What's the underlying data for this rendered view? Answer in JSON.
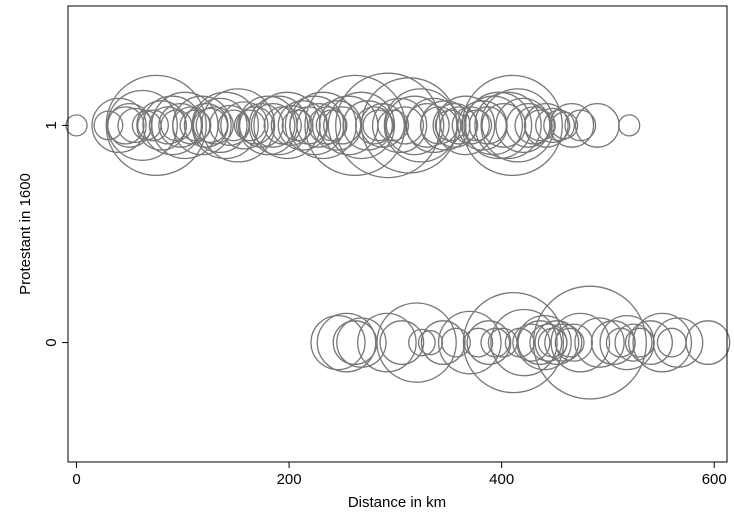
{
  "chart_data": {
    "type": "scatter",
    "title": "",
    "xlabel": "Distance in km",
    "ylabel": "Protestant in 1600",
    "xlim": [
      -8,
      612
    ],
    "ylim": [
      -0.55,
      1.55
    ],
    "x_ticks": [
      0,
      200,
      400,
      600
    ],
    "x_tick_labels": [
      "0",
      "200",
      "400",
      "600"
    ],
    "y_ticks": [
      0,
      1
    ],
    "y_tick_labels": [
      "0",
      "1"
    ],
    "grid": false,
    "legend": "none",
    "marker": "hollow circle, size proportional to weight",
    "colors": {
      "marker": "#777777",
      "frame": "#000000",
      "background": "#ffffff"
    },
    "series": [
      {
        "y": 1,
        "points": [
          {
            "x": 0,
            "w": 0.02
          },
          {
            "x": 30,
            "w": 0.05
          },
          {
            "x": 40,
            "w": 0.25
          },
          {
            "x": 46,
            "w": 0.1
          },
          {
            "x": 50,
            "w": 0.15
          },
          {
            "x": 55,
            "w": 0.08
          },
          {
            "x": 62,
            "w": 0.45
          },
          {
            "x": 66,
            "w": 0.05
          },
          {
            "x": 72,
            "w": 0.06
          },
          {
            "x": 75,
            "w": 1.0
          },
          {
            "x": 80,
            "w": 0.2
          },
          {
            "x": 86,
            "w": 0.1
          },
          {
            "x": 90,
            "w": 0.3
          },
          {
            "x": 94,
            "w": 0.06
          },
          {
            "x": 98,
            "w": 0.15
          },
          {
            "x": 102,
            "w": 0.4
          },
          {
            "x": 108,
            "w": 0.1
          },
          {
            "x": 112,
            "w": 0.06
          },
          {
            "x": 118,
            "w": 0.3
          },
          {
            "x": 122,
            "w": 0.15
          },
          {
            "x": 126,
            "w": 0.08
          },
          {
            "x": 130,
            "w": 0.1
          },
          {
            "x": 135,
            "w": 0.25
          },
          {
            "x": 140,
            "w": 0.4
          },
          {
            "x": 144,
            "w": 0.12
          },
          {
            "x": 148,
            "w": 0.06
          },
          {
            "x": 152,
            "w": 0.5
          },
          {
            "x": 158,
            "w": 0.18
          },
          {
            "x": 163,
            "w": 0.06
          },
          {
            "x": 168,
            "w": 0.1
          },
          {
            "x": 174,
            "w": 0.15
          },
          {
            "x": 180,
            "w": 0.3
          },
          {
            "x": 185,
            "w": 0.15
          },
          {
            "x": 190,
            "w": 0.3
          },
          {
            "x": 194,
            "w": 0.1
          },
          {
            "x": 198,
            "w": 0.4
          },
          {
            "x": 202,
            "w": 0.12
          },
          {
            "x": 208,
            "w": 0.06
          },
          {
            "x": 213,
            "w": 0.2
          },
          {
            "x": 218,
            "w": 0.1
          },
          {
            "x": 224,
            "w": 0.3
          },
          {
            "x": 228,
            "w": 0.15
          },
          {
            "x": 232,
            "w": 0.4
          },
          {
            "x": 236,
            "w": 0.1
          },
          {
            "x": 240,
            "w": 0.06
          },
          {
            "x": 245,
            "w": 0.2
          },
          {
            "x": 250,
            "w": 0.1
          },
          {
            "x": 256,
            "w": 0.3
          },
          {
            "x": 262,
            "w": 1.0
          },
          {
            "x": 268,
            "w": 0.4
          },
          {
            "x": 274,
            "w": 0.2
          },
          {
            "x": 280,
            "w": 0.1
          },
          {
            "x": 284,
            "w": 0.06
          },
          {
            "x": 288,
            "w": 0.15
          },
          {
            "x": 293,
            "w": 1.1
          },
          {
            "x": 298,
            "w": 0.06
          },
          {
            "x": 304,
            "w": 0.25
          },
          {
            "x": 309,
            "w": 0.1
          },
          {
            "x": 313,
            "w": 0.9
          },
          {
            "x": 318,
            "w": 0.3
          },
          {
            "x": 324,
            "w": 0.5
          },
          {
            "x": 330,
            "w": 0.15
          },
          {
            "x": 336,
            "w": 0.25
          },
          {
            "x": 341,
            "w": 0.1
          },
          {
            "x": 347,
            "w": 0.2
          },
          {
            "x": 352,
            "w": 0.06
          },
          {
            "x": 356,
            "w": 0.15
          },
          {
            "x": 360,
            "w": 0.1
          },
          {
            "x": 366,
            "w": 0.3
          },
          {
            "x": 371,
            "w": 0.1
          },
          {
            "x": 376,
            "w": 0.06
          },
          {
            "x": 382,
            "w": 0.2
          },
          {
            "x": 387,
            "w": 0.1
          },
          {
            "x": 392,
            "w": 0.3
          },
          {
            "x": 397,
            "w": 0.4
          },
          {
            "x": 402,
            "w": 0.15
          },
          {
            "x": 406,
            "w": 0.4
          },
          {
            "x": 410,
            "w": 1.0
          },
          {
            "x": 415,
            "w": 0.5
          },
          {
            "x": 420,
            "w": 0.25
          },
          {
            "x": 425,
            "w": 0.15
          },
          {
            "x": 430,
            "w": 0.1
          },
          {
            "x": 436,
            "w": 0.06
          },
          {
            "x": 442,
            "w": 0.15
          },
          {
            "x": 448,
            "w": 0.08
          },
          {
            "x": 454,
            "w": 0.06
          },
          {
            "x": 459,
            "w": 0.04
          },
          {
            "x": 466,
            "w": 0.15
          },
          {
            "x": 474,
            "w": 0.06
          },
          {
            "x": 490,
            "w": 0.15
          },
          {
            "x": 520,
            "w": 0.02
          }
        ]
      },
      {
        "y": 0,
        "points": [
          {
            "x": 246,
            "w": 0.25
          },
          {
            "x": 254,
            "w": 0.3
          },
          {
            "x": 262,
            "w": 0.15
          },
          {
            "x": 268,
            "w": 0.2
          },
          {
            "x": 292,
            "w": 0.3
          },
          {
            "x": 306,
            "w": 0.15
          },
          {
            "x": 320,
            "w": 0.6
          },
          {
            "x": 325,
            "w": 0.04
          },
          {
            "x": 333,
            "w": 0.03
          },
          {
            "x": 345,
            "w": 0.15
          },
          {
            "x": 357,
            "w": 0.05
          },
          {
            "x": 370,
            "w": 0.35
          },
          {
            "x": 378,
            "w": 0.05
          },
          {
            "x": 388,
            "w": 0.15
          },
          {
            "x": 394,
            "w": 0.05
          },
          {
            "x": 401,
            "w": 0.05
          },
          {
            "x": 411,
            "w": 1.0
          },
          {
            "x": 417,
            "w": 0.05
          },
          {
            "x": 421,
            "w": 0.4
          },
          {
            "x": 428,
            "w": 0.1
          },
          {
            "x": 436,
            "w": 0.15
          },
          {
            "x": 440,
            "w": 0.25
          },
          {
            "x": 444,
            "w": 0.1
          },
          {
            "x": 448,
            "w": 0.05
          },
          {
            "x": 452,
            "w": 0.15
          },
          {
            "x": 458,
            "w": 0.1
          },
          {
            "x": 464,
            "w": 0.05
          },
          {
            "x": 468,
            "w": 0.1
          },
          {
            "x": 474,
            "w": 0.3
          },
          {
            "x": 483,
            "w": 1.3
          },
          {
            "x": 492,
            "w": 0.2
          },
          {
            "x": 505,
            "w": 0.15
          },
          {
            "x": 512,
            "w": 0.05
          },
          {
            "x": 518,
            "w": 0.25
          },
          {
            "x": 524,
            "w": 0.1
          },
          {
            "x": 530,
            "w": 0.05
          },
          {
            "x": 540,
            "w": 0.15
          },
          {
            "x": 551,
            "w": 0.3
          },
          {
            "x": 560,
            "w": 0.05
          },
          {
            "x": 566,
            "w": 0.2
          },
          {
            "x": 594,
            "w": 0.15
          }
        ]
      }
    ]
  }
}
